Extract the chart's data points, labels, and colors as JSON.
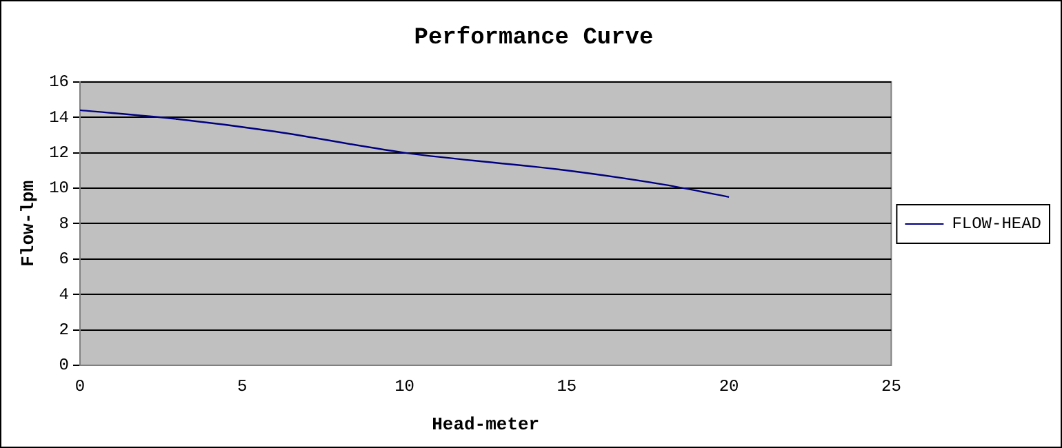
{
  "chart_data": {
    "type": "line",
    "title": "Performance Curve",
    "xlabel": "Head-meter",
    "ylabel": "Flow-lpm",
    "series": [
      {
        "name": "FLOW-HEAD",
        "color": "#000080",
        "x": [
          0,
          3,
          6,
          10,
          15,
          18,
          20
        ],
        "values": [
          14.4,
          13.9,
          13.2,
          12,
          11,
          10.2,
          9.5
        ]
      }
    ],
    "xlim": [
      0,
      25
    ],
    "xticks": [
      0,
      5,
      10,
      15,
      20,
      25
    ],
    "ylim": [
      0,
      16
    ],
    "yticks": [
      0,
      2,
      4,
      6,
      8,
      10,
      12,
      14,
      16
    ],
    "grid": "y",
    "legend": "right",
    "marker": "none",
    "line_style": "solid"
  }
}
